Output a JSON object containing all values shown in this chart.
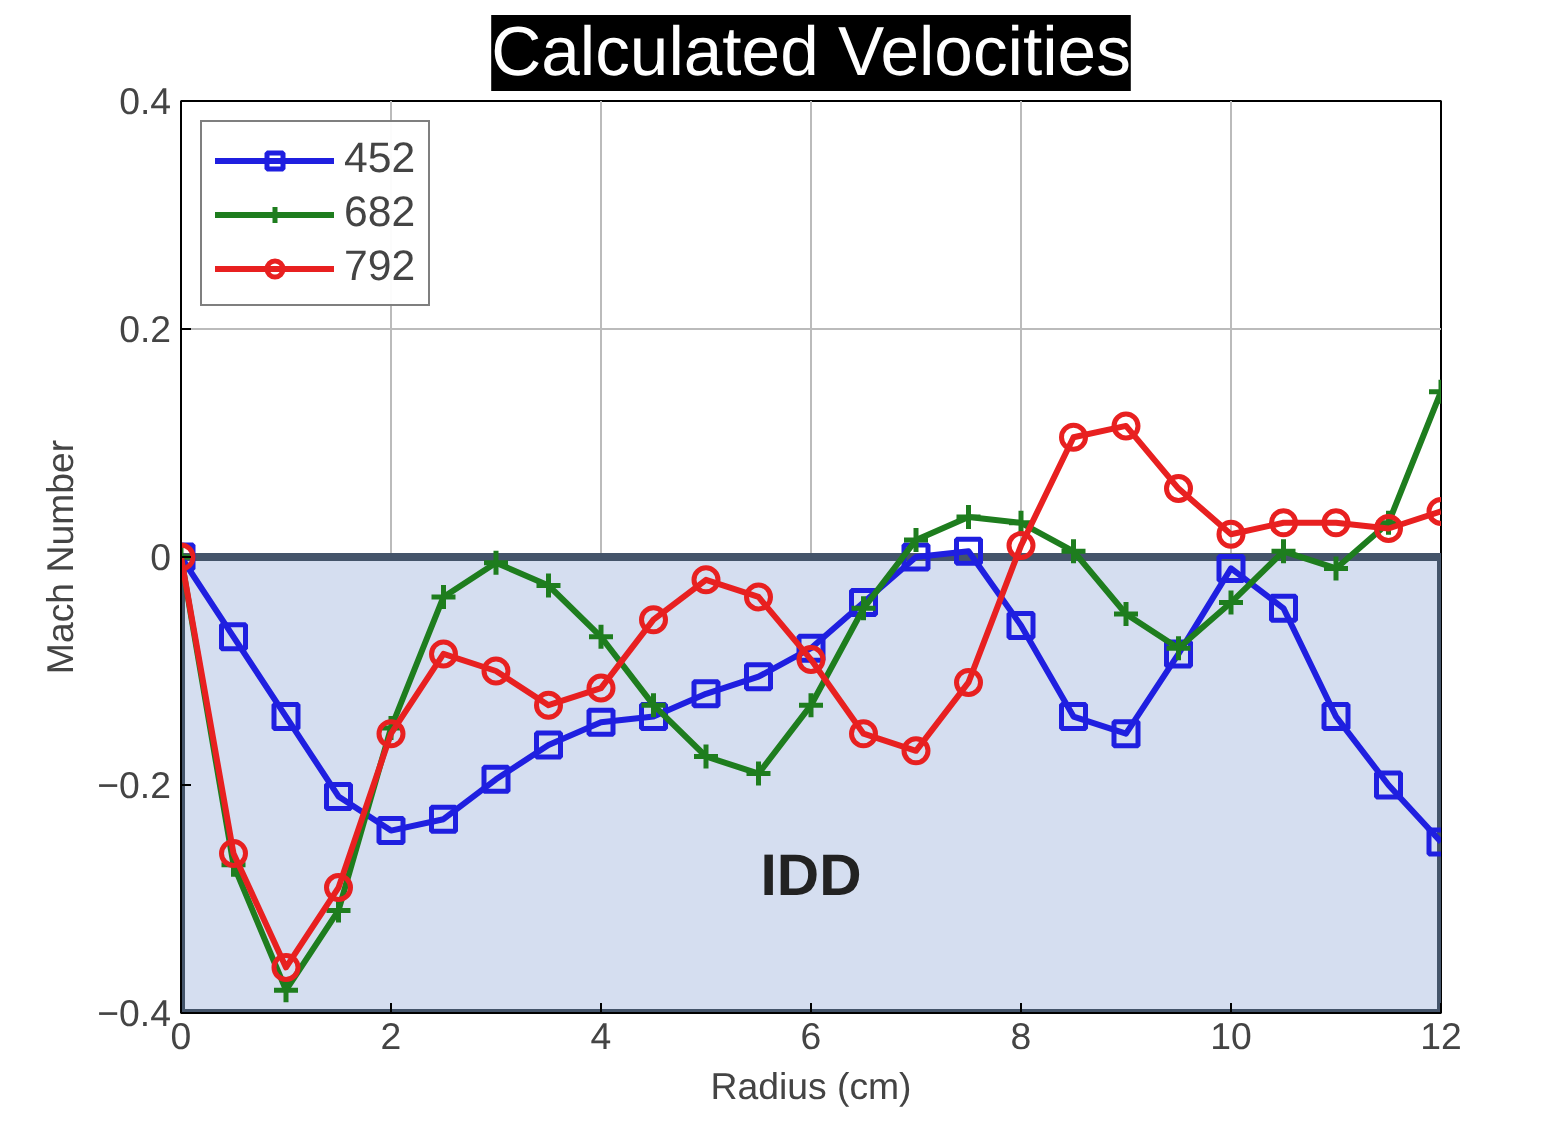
{
  "chart_data": {
    "type": "line",
    "title": "Calculated Velocities",
    "xlabel": "Radius (cm)",
    "ylabel": "Mach Number",
    "x": [
      0,
      0.5,
      1,
      1.5,
      2,
      2.5,
      3,
      3.5,
      4,
      4.5,
      5,
      5.5,
      6,
      6.5,
      7,
      7.5,
      8,
      8.5,
      9,
      9.5,
      10,
      10.5,
      11,
      11.5,
      12
    ],
    "series": [
      {
        "name": "452",
        "color": "#1f1fe0",
        "marker": "square",
        "values": [
          0,
          -0.07,
          -0.14,
          -0.21,
          -0.24,
          -0.23,
          -0.195,
          -0.165,
          -0.145,
          -0.14,
          -0.12,
          -0.105,
          -0.08,
          -0.04,
          0,
          0.005,
          -0.06,
          -0.14,
          -0.155,
          -0.085,
          -0.01,
          -0.045,
          -0.14,
          -0.2,
          -0.25
        ]
      },
      {
        "name": "682",
        "color": "#1e7d1e",
        "marker": "cross",
        "values": [
          0,
          -0.27,
          -0.38,
          -0.31,
          -0.15,
          -0.035,
          -0.005,
          -0.025,
          -0.07,
          -0.13,
          -0.175,
          -0.19,
          -0.13,
          -0.045,
          0.015,
          0.035,
          0.03,
          0.005,
          -0.05,
          -0.08,
          -0.04,
          0.005,
          -0.01,
          0.03,
          0.145
        ]
      },
      {
        "name": "792",
        "color": "#e82020",
        "marker": "circle",
        "values": [
          0,
          -0.26,
          -0.36,
          -0.29,
          -0.155,
          -0.085,
          -0.1,
          -0.13,
          -0.115,
          -0.055,
          -0.02,
          -0.035,
          -0.09,
          -0.155,
          -0.17,
          -0.11,
          0.01,
          0.105,
          0.115,
          0.06,
          0.02,
          0.03,
          0.03,
          0.025,
          0.04
        ]
      }
    ],
    "xlim": [
      0,
      12
    ],
    "ylim": [
      -0.4,
      0.4
    ],
    "xticks": [
      0,
      2,
      4,
      6,
      8,
      10,
      12
    ],
    "yticks": [
      -0.4,
      -0.2,
      0,
      0.2,
      0.4
    ],
    "bands": [
      {
        "axis": "y",
        "from": -0.4,
        "to": 0,
        "label": "IDD",
        "color": "#d5def0"
      }
    ],
    "grid": true,
    "legend": "top left",
    "line_style": "solid"
  }
}
